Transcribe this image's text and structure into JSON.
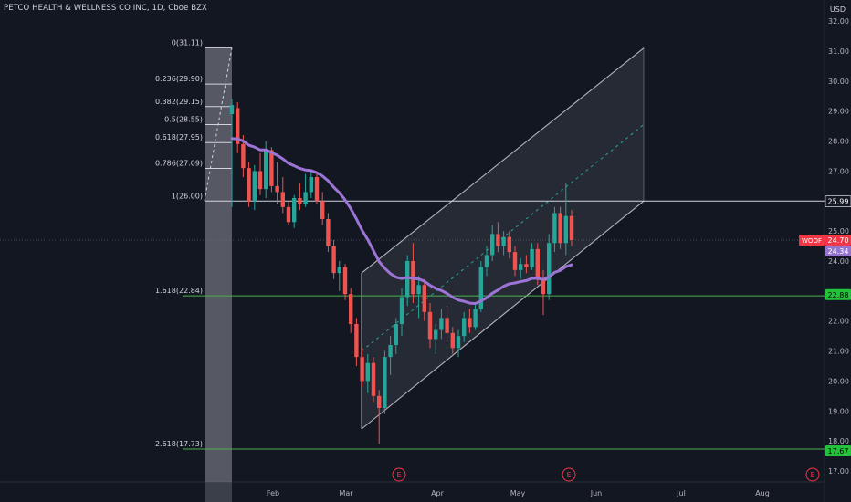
{
  "header": {
    "title": "PETCO HEALTH & WELLNESS CO INC, 1D, Cboe BZX",
    "currency": "USD"
  },
  "chart_data": {
    "type": "candlestick",
    "ylim": [
      16.6,
      32.6
    ],
    "y_ticks": [
      "32.00",
      "31.00",
      "30.00",
      "29.00",
      "28.00",
      "27.00",
      "25.00",
      "24.00",
      "22.00",
      "21.00",
      "20.00",
      "19.00",
      "18.00",
      "17.00"
    ],
    "x_ticks": [
      "Feb",
      "Mar",
      "Apr",
      "May",
      "Jun",
      "Jul",
      "Aug"
    ],
    "fib_levels": [
      {
        "label": "0(31.11)",
        "value": 31.11
      },
      {
        "label": "0.236(29.90)",
        "value": 29.9
      },
      {
        "label": "0.382(29.15)",
        "value": 29.15
      },
      {
        "label": "0.5(28.55)",
        "value": 28.55
      },
      {
        "label": "0.618(27.95)",
        "value": 27.95
      },
      {
        "label": "0.786(27.09)",
        "value": 27.09
      },
      {
        "label": "1(26.00)",
        "value": 26.0
      },
      {
        "label": "1.618(22.84)",
        "value": 22.84
      },
      {
        "label": "2.618(17.73)",
        "value": 17.73
      }
    ],
    "price_tags": [
      {
        "text": "25.99",
        "value": 25.99,
        "bg": "#131722",
        "fg": "#ffffff",
        "border": "#d1d4dc"
      },
      {
        "text": "24.70",
        "value": 24.7,
        "bg": "#f23645",
        "fg": "#ffffff"
      },
      {
        "text": "24.34",
        "value": 24.34,
        "bg": "#9575cd",
        "fg": "#ffffff"
      },
      {
        "text": "22.88",
        "value": 22.88,
        "bg": "#22c33a",
        "fg": "#000000"
      },
      {
        "text": "17.67",
        "value": 17.67,
        "bg": "#22c33a",
        "fg": "#000000"
      }
    ],
    "symbol_tag": "WOOF",
    "earnings_marker": "E",
    "colors": {
      "up": "#26a69a",
      "down": "#ef5350",
      "ma": "#9c74d6",
      "fib": "#d1d4dc",
      "green_line": "#4caf50",
      "channel": "#b2b5be"
    },
    "series_close_start": 25.5,
    "candles": [
      {
        "o": 28.9,
        "h": 29.4,
        "l": 25.8,
        "c": 29.2
      },
      {
        "o": 29.1,
        "h": 29.3,
        "l": 27.6,
        "c": 27.9
      },
      {
        "o": 27.9,
        "h": 28.2,
        "l": 26.8,
        "c": 27.1
      },
      {
        "o": 27.1,
        "h": 27.3,
        "l": 25.8,
        "c": 26.0
      },
      {
        "o": 26.0,
        "h": 27.2,
        "l": 25.7,
        "c": 27.0
      },
      {
        "o": 27.0,
        "h": 27.6,
        "l": 26.2,
        "c": 26.4
      },
      {
        "o": 26.4,
        "h": 28.0,
        "l": 26.1,
        "c": 27.7
      },
      {
        "o": 27.7,
        "h": 27.8,
        "l": 26.3,
        "c": 26.5
      },
      {
        "o": 26.5,
        "h": 27.3,
        "l": 25.9,
        "c": 26.3
      },
      {
        "o": 26.3,
        "h": 26.8,
        "l": 25.6,
        "c": 25.8
      },
      {
        "o": 25.8,
        "h": 26.0,
        "l": 25.2,
        "c": 25.3
      },
      {
        "o": 25.3,
        "h": 26.2,
        "l": 25.1,
        "c": 26.1
      },
      {
        "o": 26.1,
        "h": 26.6,
        "l": 25.7,
        "c": 25.9
      },
      {
        "o": 25.9,
        "h": 26.9,
        "l": 25.8,
        "c": 26.3
      },
      {
        "o": 26.3,
        "h": 27.0,
        "l": 26.1,
        "c": 26.8
      },
      {
        "o": 26.8,
        "h": 26.9,
        "l": 25.9,
        "c": 26.0
      },
      {
        "o": 26.0,
        "h": 26.3,
        "l": 25.2,
        "c": 25.4
      },
      {
        "o": 25.4,
        "h": 25.6,
        "l": 24.3,
        "c": 24.5
      },
      {
        "o": 24.5,
        "h": 24.7,
        "l": 23.4,
        "c": 23.6
      },
      {
        "o": 23.6,
        "h": 24.0,
        "l": 23.0,
        "c": 23.8
      },
      {
        "o": 23.8,
        "h": 23.9,
        "l": 22.7,
        "c": 22.9
      },
      {
        "o": 22.9,
        "h": 23.1,
        "l": 21.6,
        "c": 21.9
      },
      {
        "o": 21.9,
        "h": 22.1,
        "l": 20.5,
        "c": 20.8
      },
      {
        "o": 20.8,
        "h": 21.1,
        "l": 19.8,
        "c": 20.0
      },
      {
        "o": 20.0,
        "h": 20.9,
        "l": 19.6,
        "c": 20.6
      },
      {
        "o": 20.6,
        "h": 20.8,
        "l": 19.3,
        "c": 19.5
      },
      {
        "o": 19.5,
        "h": 19.7,
        "l": 17.9,
        "c": 19.1
      },
      {
        "o": 19.1,
        "h": 21.0,
        "l": 18.9,
        "c": 20.8
      },
      {
        "o": 20.8,
        "h": 21.5,
        "l": 20.2,
        "c": 21.2
      },
      {
        "o": 21.2,
        "h": 22.1,
        "l": 20.9,
        "c": 21.9
      },
      {
        "o": 21.9,
        "h": 23.1,
        "l": 21.5,
        "c": 22.8
      },
      {
        "o": 22.8,
        "h": 24.2,
        "l": 22.5,
        "c": 24.0
      },
      {
        "o": 24.0,
        "h": 24.6,
        "l": 22.6,
        "c": 22.9
      },
      {
        "o": 22.9,
        "h": 23.5,
        "l": 22.1,
        "c": 23.2
      },
      {
        "o": 23.2,
        "h": 23.4,
        "l": 22.0,
        "c": 22.3
      },
      {
        "o": 22.3,
        "h": 22.6,
        "l": 21.1,
        "c": 21.4
      },
      {
        "o": 21.4,
        "h": 21.9,
        "l": 20.9,
        "c": 21.7
      },
      {
        "o": 21.7,
        "h": 22.4,
        "l": 21.4,
        "c": 22.1
      },
      {
        "o": 22.1,
        "h": 22.5,
        "l": 21.3,
        "c": 21.6
      },
      {
        "o": 21.6,
        "h": 21.8,
        "l": 20.9,
        "c": 21.1
      },
      {
        "o": 21.1,
        "h": 21.7,
        "l": 20.8,
        "c": 21.5
      },
      {
        "o": 21.5,
        "h": 22.3,
        "l": 21.3,
        "c": 22.1
      },
      {
        "o": 22.1,
        "h": 22.4,
        "l": 21.6,
        "c": 21.8
      },
      {
        "o": 21.8,
        "h": 22.6,
        "l": 21.7,
        "c": 22.4
      },
      {
        "o": 22.4,
        "h": 24.0,
        "l": 22.3,
        "c": 23.8
      },
      {
        "o": 23.8,
        "h": 24.5,
        "l": 23.5,
        "c": 24.2
      },
      {
        "o": 24.2,
        "h": 25.2,
        "l": 24.0,
        "c": 24.9
      },
      {
        "o": 24.9,
        "h": 25.3,
        "l": 24.3,
        "c": 24.5
      },
      {
        "o": 24.5,
        "h": 25.0,
        "l": 24.2,
        "c": 24.8
      },
      {
        "o": 24.8,
        "h": 25.0,
        "l": 24.1,
        "c": 24.3
      },
      {
        "o": 24.3,
        "h": 24.5,
        "l": 23.5,
        "c": 23.7
      },
      {
        "o": 23.7,
        "h": 24.1,
        "l": 23.4,
        "c": 23.9
      },
      {
        "o": 23.9,
        "h": 24.2,
        "l": 23.6,
        "c": 23.8
      },
      {
        "o": 23.8,
        "h": 24.6,
        "l": 23.7,
        "c": 24.4
      },
      {
        "o": 24.4,
        "h": 24.6,
        "l": 23.2,
        "c": 23.4
      },
      {
        "o": 23.4,
        "h": 23.7,
        "l": 22.2,
        "c": 22.9
      },
      {
        "o": 22.9,
        "h": 24.9,
        "l": 22.7,
        "c": 24.6
      },
      {
        "o": 24.6,
        "h": 25.8,
        "l": 24.3,
        "c": 25.6
      },
      {
        "o": 25.6,
        "h": 25.8,
        "l": 24.4,
        "c": 24.6
      },
      {
        "o": 24.6,
        "h": 26.6,
        "l": 24.2,
        "c": 25.5
      },
      {
        "o": 25.5,
        "h": 25.7,
        "l": 24.5,
        "c": 24.7
      }
    ]
  }
}
